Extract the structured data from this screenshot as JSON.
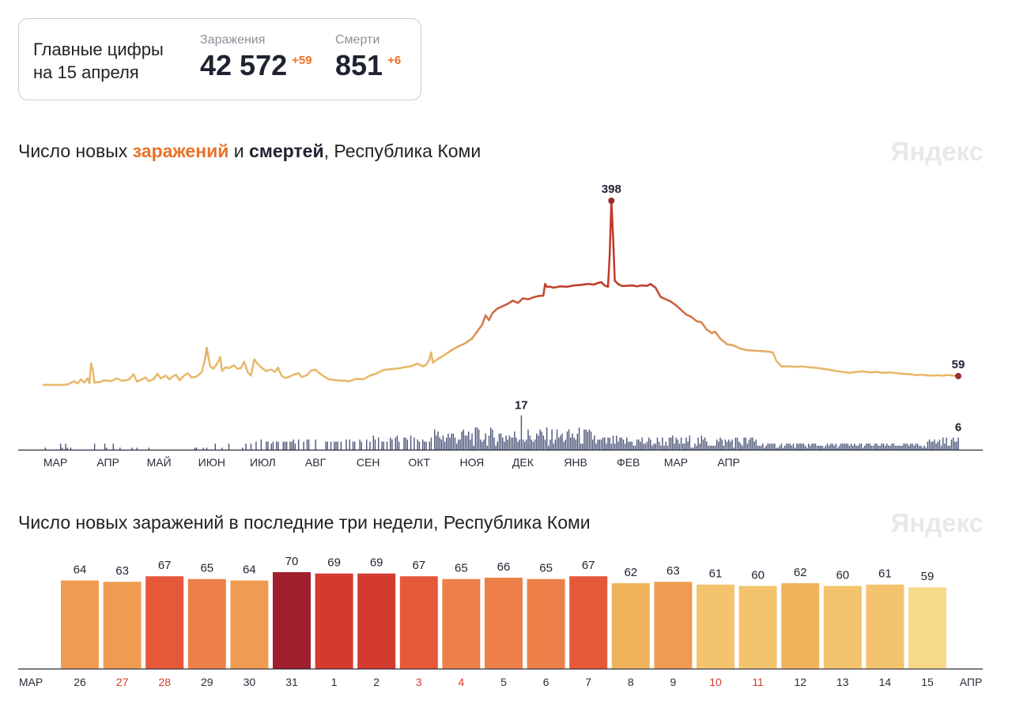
{
  "summary": {
    "title_line1": "Главные цифры",
    "title_line2": "на 15 апреля",
    "infections_label": "Заражения",
    "infections_value": "42 572",
    "infections_delta": "+59",
    "deaths_label": "Смерти",
    "deaths_value": "851",
    "deaths_delta": "+6"
  },
  "chart1": {
    "title_part1": "Число новых ",
    "title_part2": "заражений",
    "title_part3": " и ",
    "title_part4": "смертей",
    "title_part5": ", Республика Коми",
    "brand": "Яндекс"
  },
  "chart2": {
    "title": "Число новых заражений в последние три недели, Республика Коми",
    "brand": "Яндекс"
  },
  "colors": {
    "infection_low": "#e8b86a",
    "infection_high": "#c0392b",
    "death_bars": "#4a5378",
    "peak_dot": "#9b2c2c",
    "weekend_label": "#d93a2b"
  },
  "chart_data": [
    {
      "type": "line",
      "title": "Число новых заражений и смертей, Республика Коми",
      "x_month_labels": [
        "МАР",
        "АПР",
        "МАЙ",
        "ИЮН",
        "ИЮЛ",
        "АВГ",
        "СЕН",
        "ОКТ",
        "НОЯ",
        "ДЕК",
        "ЯНВ",
        "ФЕВ",
        "МАР",
        "АПР"
      ],
      "series": [
        {
          "name": "заражений",
          "note_values_per_day": true,
          "keypoints": [
            [
              0,
              0
            ],
            [
              12,
              0
            ],
            [
              15,
              2
            ],
            [
              18,
              8
            ],
            [
              20,
              3
            ],
            [
              22,
              12
            ],
            [
              24,
              5
            ],
            [
              26,
              14
            ],
            [
              27,
              4
            ],
            [
              28,
              46
            ],
            [
              29,
              32
            ],
            [
              30,
              5
            ],
            [
              33,
              6
            ],
            [
              36,
              10
            ],
            [
              40,
              8
            ],
            [
              43,
              14
            ],
            [
              46,
              9
            ],
            [
              50,
              11
            ],
            [
              53,
              23
            ],
            [
              55,
              7
            ],
            [
              58,
              12
            ],
            [
              60,
              16
            ],
            [
              62,
              8
            ],
            [
              65,
              13
            ],
            [
              67,
              24
            ],
            [
              69,
              14
            ],
            [
              72,
              20
            ],
            [
              74,
              12
            ],
            [
              76,
              18
            ],
            [
              78,
              22
            ],
            [
              80,
              10
            ],
            [
              83,
              21
            ],
            [
              85,
              25
            ],
            [
              87,
              16
            ],
            [
              90,
              18
            ],
            [
              93,
              27
            ],
            [
              95,
              55
            ],
            [
              96,
              80
            ],
            [
              98,
              40
            ],
            [
              100,
              35
            ],
            [
              102,
              45
            ],
            [
              104,
              60
            ],
            [
              105,
              30
            ],
            [
              107,
              38
            ],
            [
              109,
              36
            ],
            [
              112,
              42
            ],
            [
              114,
              35
            ],
            [
              116,
              36
            ],
            [
              118,
              50
            ],
            [
              120,
              28
            ],
            [
              122,
              20
            ],
            [
              124,
              55
            ],
            [
              126,
              45
            ],
            [
              128,
              38
            ],
            [
              131,
              30
            ],
            [
              134,
              33
            ],
            [
              136,
              28
            ],
            [
              138,
              37
            ],
            [
              140,
              20
            ],
            [
              142,
              15
            ],
            [
              145,
              18
            ],
            [
              147,
              22
            ],
            [
              150,
              25
            ],
            [
              152,
              17
            ],
            [
              155,
              21
            ],
            [
              157,
              30
            ],
            [
              160,
              33
            ],
            [
              162,
              26
            ],
            [
              165,
              18
            ],
            [
              168,
              12
            ],
            [
              172,
              10
            ],
            [
              176,
              9
            ],
            [
              180,
              8
            ],
            [
              184,
              13
            ],
            [
              188,
              12
            ],
            [
              192,
              20
            ],
            [
              196,
              25
            ],
            [
              200,
              32
            ],
            [
              204,
              34
            ],
            [
              208,
              35
            ],
            [
              212,
              38
            ],
            [
              216,
              40
            ],
            [
              220,
              46
            ],
            [
              223,
              40
            ],
            [
              225,
              43
            ],
            [
              227,
              55
            ],
            [
              228,
              70
            ],
            [
              229,
              48
            ],
            [
              232,
              56
            ],
            [
              236,
              65
            ],
            [
              240,
              75
            ],
            [
              244,
              83
            ],
            [
              248,
              90
            ],
            [
              252,
              100
            ],
            [
              255,
              115
            ],
            [
              258,
              130
            ],
            [
              260,
              150
            ],
            [
              262,
              140
            ],
            [
              264,
              155
            ],
            [
              267,
              165
            ],
            [
              270,
              170
            ],
            [
              273,
              175
            ],
            [
              276,
              182
            ],
            [
              279,
              177
            ],
            [
              282,
              187
            ],
            [
              285,
              185
            ],
            [
              288,
              189
            ],
            [
              291,
              192
            ],
            [
              294,
              193
            ],
            [
              295,
              218
            ],
            [
              296,
              212
            ],
            [
              298,
              212
            ],
            [
              300,
              210
            ],
            [
              304,
              213
            ],
            [
              308,
              212
            ],
            [
              312,
              215
            ],
            [
              316,
              216
            ],
            [
              320,
              218
            ],
            [
              324,
              217
            ],
            [
              326,
              220
            ],
            [
              328,
              222
            ],
            [
              330,
              215
            ],
            [
              332,
              212
            ],
            [
              333,
              280
            ],
            [
              334,
              398
            ],
            [
              335,
              320
            ],
            [
              336,
              225
            ],
            [
              338,
              218
            ],
            [
              340,
              214
            ],
            [
              343,
              214
            ],
            [
              346,
              215
            ],
            [
              349,
              213
            ],
            [
              352,
              215
            ],
            [
              355,
              214
            ],
            [
              357,
              218
            ],
            [
              360,
              210
            ],
            [
              363,
              190
            ],
            [
              366,
              185
            ],
            [
              369,
              180
            ],
            [
              372,
              172
            ],
            [
              375,
              162
            ],
            [
              378,
              152
            ],
            [
              381,
              147
            ],
            [
              384,
              138
            ],
            [
              387,
              135
            ],
            [
              390,
              120
            ],
            [
              393,
              112
            ],
            [
              395,
              115
            ],
            [
              398,
              100
            ],
            [
              402,
              88
            ],
            [
              406,
              85
            ],
            [
              410,
              78
            ],
            [
              414,
              75
            ],
            [
              418,
              74
            ],
            [
              422,
              73
            ],
            [
              426,
              72
            ],
            [
              429,
              70
            ],
            [
              431,
              52
            ],
            [
              434,
              40
            ],
            [
              438,
              40
            ],
            [
              442,
              39
            ],
            [
              446,
              40
            ],
            [
              450,
              38
            ],
            [
              454,
              37
            ],
            [
              458,
              35
            ],
            [
              462,
              33
            ],
            [
              466,
              30
            ],
            [
              470,
              28
            ],
            [
              474,
              26
            ],
            [
              478,
              28
            ],
            [
              482,
              29
            ],
            [
              486,
              27
            ],
            [
              490,
              28
            ],
            [
              494,
              26
            ],
            [
              498,
              27
            ],
            [
              502,
              25
            ],
            [
              506,
              24
            ],
            [
              509,
              23
            ],
            [
              510,
              23
            ],
            [
              513,
              21
            ],
            [
              516,
              22
            ],
            [
              519,
              21
            ],
            [
              521,
              20
            ],
            [
              523,
              20
            ],
            [
              526,
              21
            ],
            [
              527,
              20
            ],
            [
              529,
              20
            ],
            [
              531,
              21
            ],
            [
              533,
              21
            ],
            [
              535,
              20
            ],
            [
              536,
              20
            ],
            [
              537,
              20
            ],
            [
              538,
              19
            ]
          ],
          "last_value": 59,
          "peak_value": 398
        },
        {
          "name": "смертей",
          "peak_value": 17,
          "last_value": 6
        }
      ],
      "annotations": [
        "398",
        "59",
        "17",
        "6"
      ]
    },
    {
      "type": "bar",
      "title": "Число новых заражений в последние три недели, Республика Коми",
      "categories": [
        "26",
        "27",
        "28",
        "29",
        "30",
        "31",
        "1",
        "2",
        "3",
        "4",
        "5",
        "6",
        "7",
        "8",
        "9",
        "10",
        "11",
        "12",
        "13",
        "14",
        "15"
      ],
      "values": [
        64,
        63,
        67,
        65,
        64,
        70,
        69,
        69,
        67,
        65,
        66,
        65,
        67,
        62,
        63,
        61,
        60,
        62,
        60,
        61,
        59
      ],
      "weekend": [
        false,
        true,
        true,
        false,
        false,
        false,
        false,
        false,
        true,
        true,
        false,
        false,
        false,
        false,
        false,
        true,
        true,
        false,
        false,
        false,
        false
      ],
      "x_start_label": "МАР",
      "x_end_label": "АПР"
    }
  ]
}
